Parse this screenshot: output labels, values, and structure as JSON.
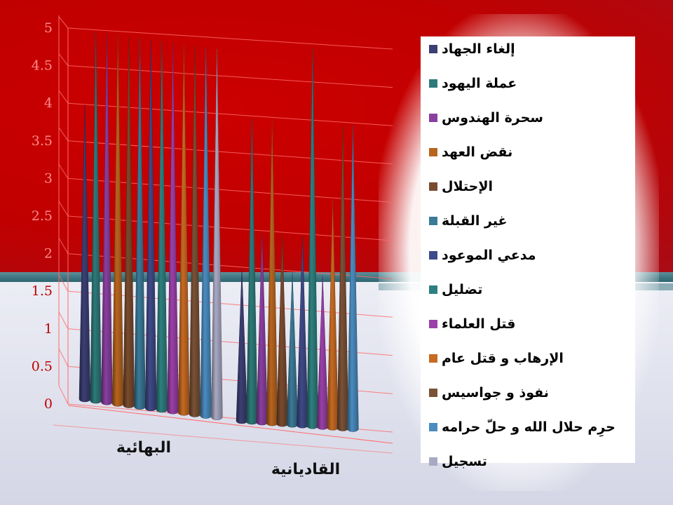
{
  "chart_data": {
    "type": "bar",
    "bar_shape": "cone",
    "categories": [
      "البهائية",
      "القاديانية"
    ],
    "series": [
      {
        "name": "إلغاء الجهاد",
        "color": "#3c3f74",
        "values": [
          4.0,
          2.0
        ]
      },
      {
        "name": "عملة اليهود",
        "color": "#2e7a7a",
        "values": [
          5.0,
          4.0
        ]
      },
      {
        "name": "سحرة الهندوس",
        "color": "#8a3fa0",
        "values": [
          5.0,
          2.5
        ]
      },
      {
        "name": "نقض العهد",
        "color": "#b8651f",
        "values": [
          5.0,
          4.0
        ]
      },
      {
        "name": "الإحتلال",
        "color": "#7a4b2e",
        "values": [
          5.0,
          2.5
        ]
      },
      {
        "name": "غير القبلة",
        "color": "#3b7a98",
        "values": [
          5.0,
          2.0
        ]
      },
      {
        "name": "مدعي الموعود",
        "color": "#3f4a88",
        "values": [
          5.0,
          2.5
        ]
      },
      {
        "name": "تضليل",
        "color": "#2e8080",
        "values": [
          5.0,
          5.0
        ]
      },
      {
        "name": "قتل العلماء",
        "color": "#9a40a8",
        "values": [
          5.0,
          2.0
        ]
      },
      {
        "name": "الإرهاب و قتل عام",
        "color": "#c76a22",
        "values": [
          5.0,
          3.0
        ]
      },
      {
        "name": "نفوذ و جواسيس",
        "color": "#7a5236",
        "values": [
          5.0,
          4.0
        ]
      },
      {
        "name": "حرِم حلال الله و حلّ حرامه",
        "color": "#4a8cc0",
        "values": [
          5.0,
          4.0
        ]
      },
      {
        "name": "تسجيل",
        "color": "#a9a9c4",
        "values": [
          5.0,
          null
        ]
      }
    ],
    "yticks": [
      "0",
      "0.5",
      "1",
      "1.5",
      "2",
      "2.5",
      "3",
      "3.5",
      "4",
      "4.5",
      "5"
    ],
    "ylim": [
      0,
      5
    ],
    "grid": true,
    "legend_position": "right"
  }
}
